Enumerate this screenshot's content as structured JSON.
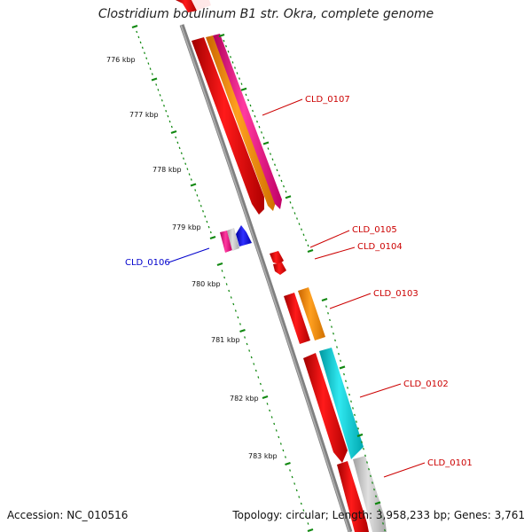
{
  "title": "Clostridium botulinum B1 str. Okra, complete genome",
  "footer": {
    "accession": "Accession: NC_010516",
    "summary": "Topology: circular; Length: 3,958,233 bp; Genes: 3,761"
  },
  "ticks": [
    "776 kbp",
    "777 kbp",
    "778 kbp",
    "779 kbp",
    "780 kbp",
    "781 kbp",
    "782 kbp",
    "783 kbp"
  ],
  "genes": [
    {
      "name": "CLD_0107",
      "color": "#cc0000"
    },
    {
      "name": "CLD_0105",
      "color": "#cc0000"
    },
    {
      "name": "CLD_0104",
      "color": "#cc0000"
    },
    {
      "name": "CLD_0103",
      "color": "#cc0000"
    },
    {
      "name": "CLD_0106",
      "color": "#0000cc"
    },
    {
      "name": "CLD_0102",
      "color": "#cc0000"
    },
    {
      "name": "CLD_0101",
      "color": "#cc0000"
    }
  ],
  "colors": {
    "backbone": "#808080",
    "tick": "#118811",
    "cds": "#ee0000",
    "orange": "#ff8c00",
    "magenta": "#ee1c8c",
    "cyan": "#00c8d0",
    "grey": "#c0c0c0",
    "blue": "#0000ee"
  }
}
